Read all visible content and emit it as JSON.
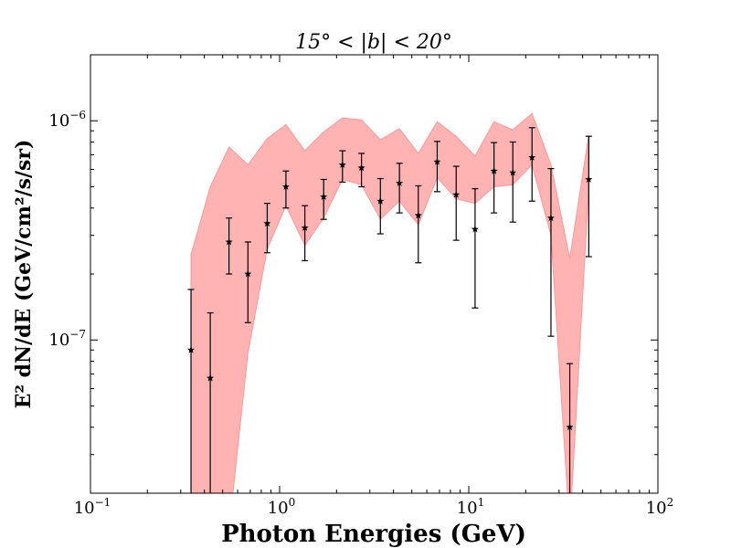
{
  "chart_data": {
    "type": "scatter",
    "title": "15° < |b| < 20°",
    "xlabel": "Photon Energies (GeV)",
    "ylabel": "E² dN/dE (GeV/cm²/s/sr)",
    "xscale": "log",
    "yscale": "log",
    "xlim": [
      0.1,
      100
    ],
    "ylim": [
      2e-08,
      2e-06
    ],
    "x_ticks": [
      {
        "base": "10",
        "exp": "−1",
        "value": 0.1
      },
      {
        "base": "10",
        "exp": "0",
        "value": 1
      },
      {
        "base": "10",
        "exp": "1",
        "value": 10
      },
      {
        "base": "10",
        "exp": "2",
        "value": 100
      }
    ],
    "y_ticks": [
      {
        "base": "10",
        "exp": "−7",
        "value": 1e-07
      },
      {
        "base": "10",
        "exp": "−6",
        "value": 1e-06
      }
    ],
    "band_color": "#ff9999",
    "marker_color": "#000000",
    "points": [
      {
        "x": 0.34,
        "y": 9e-08,
        "ylo": 1e-09,
        "yhi": 1.7e-07
      },
      {
        "x": 0.43,
        "y": 6.7e-08,
        "ylo": 1e-09,
        "yhi": 1.33e-07
      },
      {
        "x": 0.54,
        "y": 2.8e-07,
        "ylo": 2e-07,
        "yhi": 3.6e-07
      },
      {
        "x": 0.68,
        "y": 2e-07,
        "ylo": 1.2e-07,
        "yhi": 2.8e-07
      },
      {
        "x": 0.86,
        "y": 3.4e-07,
        "ylo": 2.5e-07,
        "yhi": 4.2e-07
      },
      {
        "x": 1.08,
        "y": 5e-07,
        "ylo": 4e-07,
        "yhi": 5.9e-07
      },
      {
        "x": 1.36,
        "y": 3.25e-07,
        "ylo": 2.3e-07,
        "yhi": 4.1e-07
      },
      {
        "x": 1.71,
        "y": 4.5e-07,
        "ylo": 3.55e-07,
        "yhi": 5.4e-07
      },
      {
        "x": 2.15,
        "y": 6.3e-07,
        "ylo": 5.25e-07,
        "yhi": 7.3e-07
      },
      {
        "x": 2.71,
        "y": 6.1e-07,
        "ylo": 5e-07,
        "yhi": 7.1e-07
      },
      {
        "x": 3.41,
        "y": 4.3e-07,
        "ylo": 3.05e-07,
        "yhi": 5.45e-07
      },
      {
        "x": 4.3,
        "y": 5.2e-07,
        "ylo": 3.8e-07,
        "yhi": 6.4e-07
      },
      {
        "x": 5.41,
        "y": 3.7e-07,
        "ylo": 2.25e-07,
        "yhi": 5.05e-07
      },
      {
        "x": 6.81,
        "y": 6.5e-07,
        "ylo": 4.75e-07,
        "yhi": 8.05e-07
      },
      {
        "x": 8.58,
        "y": 4.6e-07,
        "ylo": 2.85e-07,
        "yhi": 6.2e-07
      },
      {
        "x": 10.8,
        "y": 3.2e-07,
        "ylo": 1.4e-07,
        "yhi": 4.9e-07
      },
      {
        "x": 13.6,
        "y": 5.9e-07,
        "ylo": 3.8e-07,
        "yhi": 7.95e-07
      },
      {
        "x": 17.1,
        "y": 5.8e-07,
        "ylo": 3.45e-07,
        "yhi": 8e-07
      },
      {
        "x": 21.6,
        "y": 6.8e-07,
        "ylo": 4.3e-07,
        "yhi": 9.3e-07
      },
      {
        "x": 27.2,
        "y": 3.6e-07,
        "ylo": 1.04e-07,
        "yhi": 6.05e-07
      },
      {
        "x": 34.2,
        "y": 4e-08,
        "ylo": 1e-09,
        "yhi": 7.8e-08
      },
      {
        "x": 43.1,
        "y": 5.4e-07,
        "ylo": 2.4e-07,
        "yhi": 8.5e-07
      }
    ],
    "band": {
      "x": [
        0.34,
        0.43,
        0.54,
        0.68,
        0.86,
        1.08,
        1.36,
        1.71,
        2.15,
        2.71,
        3.41,
        4.3,
        5.41,
        6.81,
        8.58,
        10.8,
        13.6,
        17.1,
        21.6,
        27.2,
        34.2,
        43.1
      ],
      "hi": [
        2.45e-07,
        5e-07,
        7.6e-07,
        6.3e-07,
        8.3e-07,
        9.6e-07,
        7.3e-07,
        8.9e-07,
        1.03e-06,
        1.01e-06,
        8.2e-07,
        9.2e-07,
        7.1e-07,
        9.9e-07,
        8.5e-07,
        6.9e-07,
        9.9e-07,
        9.1e-07,
        1.08e-06,
        6.3e-07,
        2.35e-07,
        8.6e-07
      ],
      "lo": [
        1e-09,
        1e-09,
        1e-09,
        8.7e-08,
        2.6e-07,
        4.1e-07,
        2.7e-07,
        3.6e-07,
        5.4e-07,
        5.1e-07,
        3.55e-07,
        4.3e-07,
        3.35e-07,
        5.5e-07,
        4.4e-07,
        4.2e-07,
        5e-07,
        5.1e-07,
        6.3e-07,
        3e-07,
        1e-09,
        5e-07
      ]
    }
  }
}
